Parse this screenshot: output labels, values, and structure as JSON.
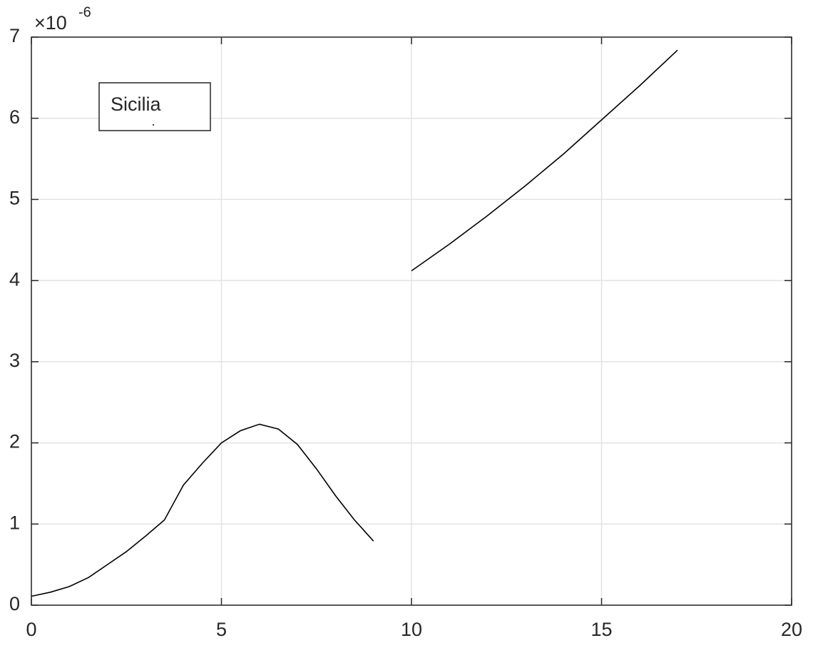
{
  "chart_data": {
    "type": "line",
    "y_multiplier": "×10",
    "y_exponent": "-6",
    "x": [
      0,
      0.5,
      1,
      1.5,
      2,
      2.5,
      3,
      3.5,
      4,
      4.5,
      5,
      5.5,
      6,
      6.5,
      7,
      7.5,
      8,
      8.5,
      9,
      9.5,
      10,
      11,
      12,
      13,
      14,
      15,
      16,
      17
    ],
    "series": [
      {
        "name": "Sicilia",
        "color": "#000000",
        "values": [
          0.11,
          0.16,
          0.23,
          0.34,
          0.5,
          0.66,
          0.85,
          1.05,
          1.48,
          1.75,
          2.0,
          2.15,
          2.23,
          2.17,
          1.98,
          1.68,
          1.35,
          1.05,
          0.79,
          null,
          4.12,
          4.45,
          4.8,
          5.17,
          5.56,
          5.98,
          6.4,
          6.84
        ]
      }
    ],
    "xlim": [
      0,
      20
    ],
    "xticks": [
      0,
      5,
      10,
      15,
      20
    ],
    "ylim": [
      0,
      7
    ],
    "yticks": [
      0,
      1,
      2,
      3,
      4,
      5,
      6,
      7
    ],
    "grid": true,
    "legend": "upper left"
  }
}
